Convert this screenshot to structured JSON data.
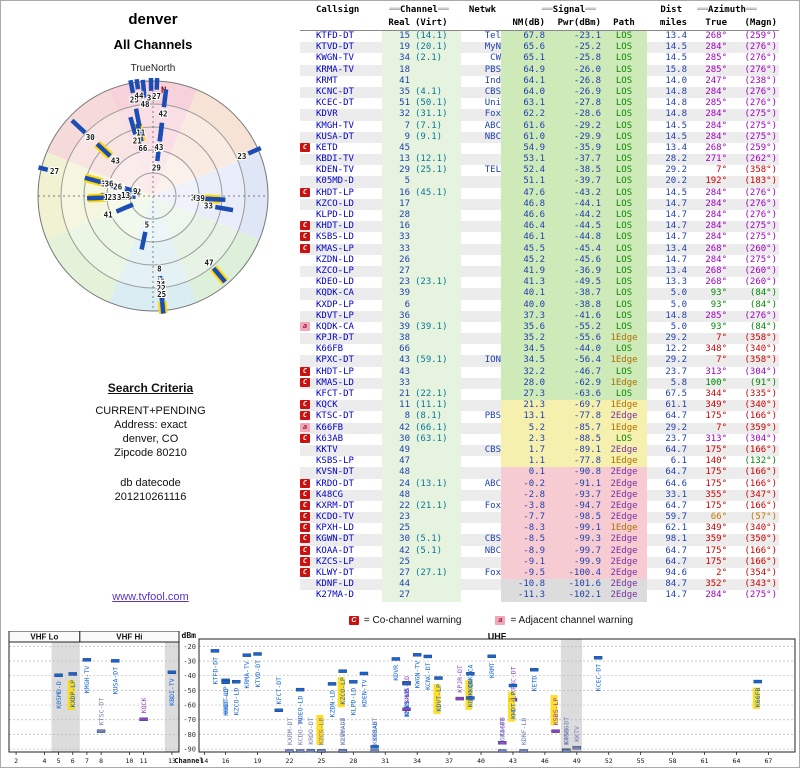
{
  "radar": {
    "title": "denver",
    "subtitle": "All Channels",
    "north_label": "TrueNorth",
    "compass_n": "N"
  },
  "search": {
    "heading": "Search Criteria",
    "lines": [
      "CURRENT+PENDING",
      "Address: exact",
      "denver, CO",
      "Zipcode 80210"
    ],
    "db_label": "db datecode",
    "db_value": "201210261116",
    "link": "www.tvfool.com"
  },
  "table_header": {
    "callsign": "Callsign",
    "channel": "Channel",
    "real": "Real",
    "virt": "(Virt)",
    "netwk": "Netwk",
    "signal": "Signal",
    "nm": "NM(dB)",
    "pwr": "Pwr(dBm)",
    "path": "Path",
    "dist": "Dist",
    "miles": "miles",
    "azimuth": "Azimuth",
    "true": "True",
    "magn": "(Magn)"
  },
  "legend": {
    "c_symbol": "C",
    "c_text": "= Co-channel warning",
    "a_symbol": "a",
    "a_text": "= Adjacent channel warning"
  },
  "colors": {
    "link": "#0000cc",
    "band_green": "#cdeab8",
    "band_yellow": "#f6f0ae",
    "band_pink": "#f6ccd2",
    "band_gray": "#dcdcdc",
    "los": "#0a8a00",
    "edge1": "#b07000",
    "edge2": "#7a2fa0",
    "bar_blue": "#1b4db4",
    "analog_highlight": "#ffd800"
  },
  "chart_data": {
    "type": "table",
    "title": "denver All Channels TV signal analysis",
    "radar_plot": {
      "type": "polar",
      "note": "bars plotted at true azimuth, radius maps noise margin (strong = near center)",
      "north_label": "TrueNorth"
    },
    "signal_plot": {
      "type": "scatter",
      "xlabel": "Channel",
      "ylabel": "dBm",
      "ylim": [
        -95,
        -15
      ],
      "yticks": [
        -20,
        -30,
        -40,
        -50,
        -60,
        -70,
        -80,
        -90
      ],
      "band_vhf_lo": "VHF Lo",
      "band_vhf_hi": "VHF Hi",
      "band_uhf": "UHF",
      "left_ticks": [
        2,
        4,
        5,
        6,
        7,
        8,
        10,
        11,
        13
      ],
      "right_ticks": [
        14,
        16,
        19,
        22,
        25,
        28,
        31,
        34,
        37,
        40,
        43,
        46,
        49,
        52,
        55,
        58,
        61,
        64,
        67
      ]
    },
    "stations": [
      {
        "call": "KTFD-DT",
        "real": 15,
        "virt": "(14.1)",
        "net": "Tel",
        "nm": 67.8,
        "pwr": -23.1,
        "path": "LOS",
        "dist": "13.4",
        "azt": 268,
        "azm": 259,
        "band": "green"
      },
      {
        "call": "KTVD-DT",
        "real": 19,
        "virt": "(20.1)",
        "net": "MyN",
        "nm": 65.6,
        "pwr": -25.2,
        "path": "LOS",
        "dist": "14.5",
        "azt": 284,
        "azm": 276,
        "band": "green"
      },
      {
        "call": "KWGN-TV",
        "real": 34,
        "virt": "(2.1)",
        "net": "CW",
        "nm": 65.1,
        "pwr": -25.8,
        "path": "LOS",
        "dist": "14.5",
        "azt": 285,
        "azm": 276,
        "band": "green"
      },
      {
        "call": "KRMA-TV",
        "real": 18,
        "net": "PBS",
        "nm": 64.9,
        "pwr": -26.0,
        "path": "LOS",
        "dist": "15.8",
        "azt": 285,
        "azm": 276,
        "band": "green"
      },
      {
        "call": "KRMT",
        "real": 41,
        "net": "Ind",
        "nm": 64.1,
        "pwr": -26.8,
        "path": "LOS",
        "dist": "14.0",
        "azt": 247,
        "azm": 238,
        "band": "green"
      },
      {
        "call": "KCNC-DT",
        "real": 35,
        "virt": "(4.1)",
        "net": "CBS",
        "nm": 64.0,
        "pwr": -26.9,
        "path": "LOS",
        "dist": "14.8",
        "azt": 284,
        "azm": 276,
        "band": "green"
      },
      {
        "call": "KCEC-DT",
        "real": 51,
        "virt": "(50.1)",
        "net": "Uni",
        "nm": 63.1,
        "pwr": -27.8,
        "path": "LOS",
        "dist": "14.8",
        "azt": 285,
        "azm": 276,
        "band": "green"
      },
      {
        "call": "KDVR",
        "real": 32,
        "virt": "(31.1)",
        "net": "Fox",
        "nm": 62.2,
        "pwr": -28.6,
        "path": "LOS",
        "dist": "14.8",
        "azt": 284,
        "azm": 275,
        "band": "green"
      },
      {
        "call": "KMGH-TV",
        "real": 7,
        "virt": "(7.1)",
        "net": "ABC",
        "nm": 61.6,
        "pwr": -29.2,
        "path": "LOS",
        "dist": "14.5",
        "azt": 284,
        "azm": 275,
        "band": "green"
      },
      {
        "call": "KUSA-DT",
        "real": 9,
        "virt": "(9.1)",
        "net": "NBC",
        "nm": 61.0,
        "pwr": -29.9,
        "path": "LOS",
        "dist": "14.5",
        "azt": 284,
        "azm": 275,
        "band": "green"
      },
      {
        "flag": "C",
        "call": "KETD",
        "real": 45,
        "nm": 54.9,
        "pwr": -35.9,
        "path": "LOS",
        "dist": "13.4",
        "azt": 268,
        "azm": 259,
        "band": "green"
      },
      {
        "call": "KBDI-TV",
        "real": 13,
        "virt": "(12.1)",
        "nm": 53.1,
        "pwr": -37.7,
        "path": "LOS",
        "dist": "28.2",
        "azt": 271,
        "azm": 262,
        "band": "green"
      },
      {
        "call": "KDEN-TV",
        "real": 29,
        "virt": "(25.1)",
        "net": "TEL",
        "nm": 52.4,
        "pwr": -38.5,
        "path": "LOS",
        "dist": "29.2",
        "azt": 7,
        "azm": 358,
        "band": "green"
      },
      {
        "call": "K05MD-D",
        "real": 5,
        "nm": 51.1,
        "pwr": -39.7,
        "path": "LOS",
        "dist": "20.2",
        "azt": 192,
        "azm": 183,
        "band": "green"
      },
      {
        "flag": "C",
        "call": "KHDT-LP",
        "real": 16,
        "virt": "(45.1)",
        "nm": 47.6,
        "pwr": -43.2,
        "path": "LOS",
        "dist": "14.5",
        "azt": 284,
        "azm": 276,
        "band": "green"
      },
      {
        "call": "KZCO-LD",
        "real": 17,
        "nm": 46.8,
        "pwr": -44.1,
        "path": "LOS",
        "dist": "14.7",
        "azt": 284,
        "azm": 276,
        "band": "green"
      },
      {
        "call": "KLPD-LD",
        "real": 28,
        "nm": 46.6,
        "pwr": -44.2,
        "path": "LOS",
        "dist": "14.7",
        "azt": 284,
        "azm": 276,
        "band": "green"
      },
      {
        "flag": "C",
        "call": "KHDT-LD",
        "real": 16,
        "nm": 46.4,
        "pwr": -44.5,
        "path": "LOS",
        "dist": "14.7",
        "azt": 284,
        "azm": 275,
        "band": "green"
      },
      {
        "flag": "C",
        "call": "KSBS-LD",
        "real": 33,
        "nm": 46.1,
        "pwr": -44.8,
        "path": "LOS",
        "dist": "14.7",
        "azt": 284,
        "azm": 275,
        "band": "green"
      },
      {
        "flag": "C",
        "call": "KMAS-LP",
        "real": 33,
        "nm": 45.5,
        "pwr": -45.4,
        "path": "LOS",
        "dist": "13.4",
        "azt": 268,
        "azm": 260,
        "band": "green"
      },
      {
        "call": "KZDN-LD",
        "real": 26,
        "nm": 45.2,
        "pwr": -45.6,
        "path": "LOS",
        "dist": "14.7",
        "azt": 284,
        "azm": 275,
        "band": "green"
      },
      {
        "call": "KZCO-LP",
        "real": 27,
        "nm": 41.9,
        "pwr": -36.9,
        "path": "LOS",
        "dist": "13.4",
        "azt": 268,
        "azm": 260,
        "band": "green",
        "ana": true
      },
      {
        "call": "KDEO-LD",
        "real": 23,
        "virt": "(23.1)",
        "nm": 41.3,
        "pwr": -49.5,
        "path": "LOS",
        "dist": "13.3",
        "azt": 268,
        "azm": 260,
        "band": "green"
      },
      {
        "call": "KQDK-CA",
        "real": 39,
        "nm": 40.1,
        "pwr": -38.7,
        "path": "LOS",
        "dist": "5.0",
        "azt": 93,
        "azm": 84,
        "band": "green",
        "ana": true
      },
      {
        "call": "KXDP-LP",
        "real": 6,
        "nm": 40.0,
        "pwr": -38.8,
        "path": "LOS",
        "dist": "5.0",
        "azt": 93,
        "azm": 84,
        "band": "green",
        "ana": true
      },
      {
        "call": "KDVT-LP",
        "real": 36,
        "nm": 37.3,
        "pwr": -41.6,
        "path": "LOS",
        "dist": "14.8",
        "azt": 285,
        "azm": 276,
        "band": "green",
        "ana": true
      },
      {
        "flag": "a",
        "call": "KQDK-CA",
        "real": 39,
        "virt": "(39.1)",
        "nm": 35.6,
        "pwr": -55.2,
        "path": "LOS",
        "dist": "5.0",
        "azt": 93,
        "azm": 84,
        "band": "green"
      },
      {
        "call": "KPJR-DT",
        "real": 38,
        "nm": 35.2,
        "pwr": -55.6,
        "path": "1Edge",
        "dist": "29.2",
        "azt": 7,
        "azm": 358,
        "band": "green"
      },
      {
        "call": "K66FB",
        "real": 66,
        "nm": 34.5,
        "pwr": -44.0,
        "path": "LOS",
        "dist": "12.2",
        "azt": 348,
        "azm": 340,
        "band": "green",
        "ana": true
      },
      {
        "call": "KPXC-DT",
        "real": 43,
        "virt": "(59.1)",
        "net": "ION",
        "nm": 34.5,
        "pwr": -56.4,
        "path": "1Edge",
        "dist": "29.2",
        "azt": 7,
        "azm": 358,
        "band": "green"
      },
      {
        "flag": "C",
        "call": "KHDT-LP",
        "real": 43,
        "nm": 32.2,
        "pwr": -46.7,
        "path": "LOS",
        "dist": "23.7",
        "azt": 313,
        "azm": 304,
        "band": "green",
        "ana": true
      },
      {
        "flag": "C",
        "call": "KMAS-LD",
        "real": 33,
        "nm": 28.0,
        "pwr": -62.9,
        "path": "1Edge",
        "dist": "5.8",
        "azt": 100,
        "azm": 91,
        "band": "green"
      },
      {
        "call": "KFCT-DT",
        "real": 21,
        "virt": "(22.1)",
        "nm": 27.3,
        "pwr": -63.6,
        "path": "LOS",
        "dist": "67.5",
        "azt": 344,
        "azm": 335,
        "band": "green"
      },
      {
        "flag": "C",
        "call": "KQCK",
        "real": 11,
        "virt": "(11.1)",
        "nm": 21.3,
        "pwr": -69.7,
        "path": "1Edge",
        "dist": "61.1",
        "azt": 349,
        "azm": 340,
        "band": "yellow"
      },
      {
        "flag": "C",
        "call": "KTSC-DT",
        "real": 8,
        "virt": "(8.1)",
        "net": "PBS",
        "nm": 13.1,
        "pwr": -77.8,
        "path": "2Edge",
        "dist": "64.7",
        "azt": 175,
        "azm": 166,
        "band": "yellow"
      },
      {
        "flag": "a",
        "call": "K66FB",
        "real": 42,
        "virt": "(66.1)",
        "nm": 5.2,
        "pwr": -85.7,
        "path": "1Edge",
        "dist": "29.2",
        "azt": 7,
        "azm": 359,
        "band": "yellow"
      },
      {
        "flag": "C",
        "call": "K63AB",
        "real": 30,
        "virt": "(63.1)",
        "nm": 2.3,
        "pwr": -88.5,
        "path": "LOS",
        "dist": "23.7",
        "azt": 313,
        "azm": 304,
        "band": "yellow"
      },
      {
        "call": "KKTV",
        "real": 49,
        "net": "CBS",
        "nm": 1.7,
        "pwr": -89.1,
        "path": "2Edge",
        "dist": "64.7",
        "azt": 175,
        "azm": 166,
        "band": "yellow"
      },
      {
        "call": "KSBS-LP",
        "real": 47,
        "nm": 1.1,
        "pwr": -77.8,
        "path": "1Edge",
        "dist": "6.1",
        "azt": 140,
        "azm": 132,
        "band": "yellow",
        "ana": true
      },
      {
        "call": "KVSN-DT",
        "real": 48,
        "nm": 0.1,
        "pwr": -90.8,
        "path": "2Edge",
        "dist": "64.7",
        "azt": 175,
        "azm": 166,
        "band": "pink"
      },
      {
        "flag": "C",
        "call": "KRDO-DT",
        "real": 24,
        "virt": "(13.1)",
        "net": "ABC",
        "nm": -0.2,
        "pwr": -91.1,
        "path": "2Edge",
        "dist": "64.6",
        "azt": 175,
        "azm": 166,
        "band": "pink"
      },
      {
        "flag": "C",
        "call": "K48CG",
        "real": 48,
        "nm": -2.8,
        "pwr": -93.7,
        "path": "2Edge",
        "dist": "33.1",
        "azt": 355,
        "azm": 347,
        "band": "pink"
      },
      {
        "flag": "C",
        "call": "KXRM-DT",
        "real": 22,
        "virt": "(21.1)",
        "net": "Fox",
        "nm": -3.8,
        "pwr": -94.7,
        "path": "2Edge",
        "dist": "64.7",
        "azt": 175,
        "azm": 166,
        "band": "pink"
      },
      {
        "flag": "C",
        "call": "KCDO-TV",
        "real": 23,
        "nm": -7.7,
        "pwr": -98.5,
        "path": "2Edge",
        "dist": "59.7",
        "azt": 66,
        "azm": 57,
        "band": "pink"
      },
      {
        "flag": "C",
        "call": "KPXH-LD",
        "real": 25,
        "nm": -8.3,
        "pwr": -99.1,
        "path": "1Edge",
        "dist": "62.1",
        "azt": 349,
        "azm": 340,
        "band": "pink"
      },
      {
        "flag": "C",
        "call": "KGWN-DT",
        "real": 30,
        "virt": "(5.1)",
        "net": "CBS",
        "nm": -8.5,
        "pwr": -99.3,
        "path": "2Edge",
        "dist": "98.1",
        "azt": 359,
        "azm": 350,
        "band": "pink"
      },
      {
        "flag": "C",
        "call": "KOAA-DT",
        "real": 42,
        "virt": "(5.1)",
        "net": "NBC",
        "nm": -8.9,
        "pwr": -99.7,
        "path": "2Edge",
        "dist": "64.7",
        "azt": 175,
        "azm": 166,
        "band": "pink"
      },
      {
        "flag": "C",
        "call": "KZCS-LP",
        "real": 25,
        "nm": -9.1,
        "pwr": -99.9,
        "path": "2Edge",
        "dist": "64.7",
        "azt": 175,
        "azm": 166,
        "band": "pink",
        "ana": true
      },
      {
        "flag": "C",
        "call": "KLWY-DT",
        "real": 27,
        "virt": "(27.1)",
        "net": "Fox",
        "nm": -9.5,
        "pwr": -100.4,
        "path": "2Edge",
        "dist": "94.6",
        "azt": 2,
        "azm": 354,
        "band": "pink"
      },
      {
        "call": "KDNF-LD",
        "real": 44,
        "nm": -10.8,
        "pwr": -101.6,
        "path": "2Edge",
        "dist": "84.7",
        "azt": 352,
        "azm": 343,
        "band": "gray"
      },
      {
        "call": "K27MA-D",
        "real": 27,
        "nm": -11.3,
        "pwr": -102.1,
        "path": "2Edge",
        "dist": "14.7",
        "azt": 284,
        "azm": 275,
        "band": "gray"
      }
    ]
  }
}
